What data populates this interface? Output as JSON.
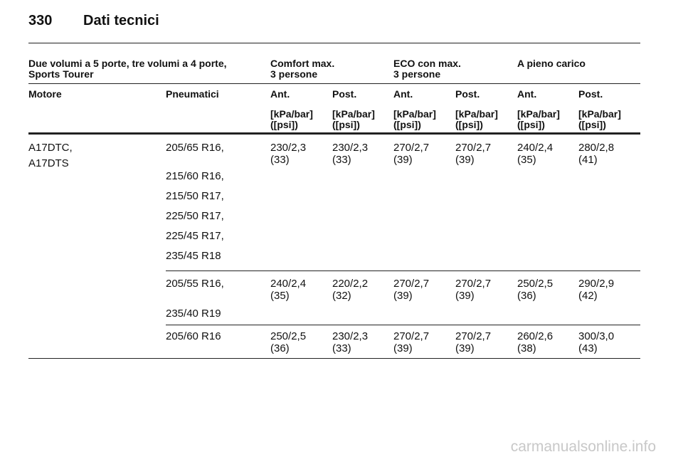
{
  "header": {
    "page_number": "330",
    "title": "Dati tecnici"
  },
  "table": {
    "vehicle": [
      "Due volumi a 5 porte, tre volumi a 4 porte,",
      "Sports Tourer"
    ],
    "load_headers": [
      [
        "Comfort max.",
        "3 persone"
      ],
      [
        "ECO con max.",
        "3 persone"
      ],
      [
        "A pieno carico"
      ]
    ],
    "columns": [
      "Motore",
      "Pneumatici",
      "Ant.",
      "Post.",
      "Ant.",
      "Post.",
      "Ant.",
      "Post."
    ],
    "units": [
      [
        "[kPa/bar]",
        "([psi])"
      ],
      [
        "[kPa/bar]",
        "([psi])"
      ],
      [
        "[kPa/bar]",
        "([psi])"
      ],
      [
        "[kPa/bar]",
        "([psi])"
      ],
      [
        "[kPa/bar]",
        "([psi])"
      ],
      [
        "[kPa/bar]",
        "([psi])"
      ]
    ],
    "engines": [
      "A17DTC,",
      "A17DTS"
    ],
    "groups": [
      {
        "tyres": [
          "205/65 R16,",
          "215/60 R16,",
          "215/50 R17,",
          "225/50 R17,",
          "225/45 R17,",
          "235/45 R18"
        ],
        "values": [
          [
            "230/2,3",
            "(33)"
          ],
          [
            "230/2,3",
            "(33)"
          ],
          [
            "270/2,7",
            "(39)"
          ],
          [
            "270/2,7",
            "(39)"
          ],
          [
            "240/2,4",
            "(35)"
          ],
          [
            "280/2,8",
            "(41)"
          ]
        ]
      },
      {
        "tyres": [
          "205/55 R16,",
          "235/40 R19"
        ],
        "values": [
          [
            "240/2,4",
            "(35)"
          ],
          [
            "220/2,2",
            "(32)"
          ],
          [
            "270/2,7",
            "(39)"
          ],
          [
            "270/2,7",
            "(39)"
          ],
          [
            "250/2,5",
            "(36)"
          ],
          [
            "290/2,9",
            "(42)"
          ]
        ]
      },
      {
        "tyres": [
          "205/60 R16"
        ],
        "values": [
          [
            "250/2,5",
            "(36)"
          ],
          [
            "230/2,3",
            "(33)"
          ],
          [
            "270/2,7",
            "(39)"
          ],
          [
            "270/2,7",
            "(39)"
          ],
          [
            "260/2,6",
            "(38)"
          ],
          [
            "300/3,0",
            "(43)"
          ]
        ]
      }
    ]
  },
  "watermark": "carmanualsonline.info"
}
